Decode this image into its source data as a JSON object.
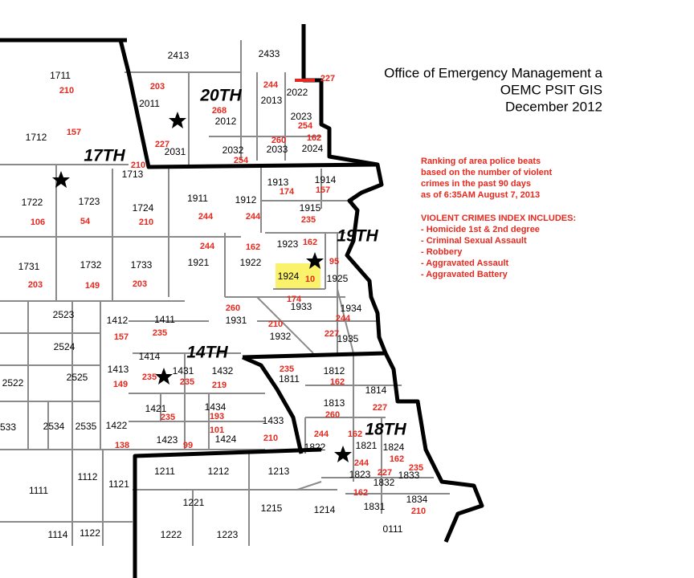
{
  "header": {
    "lines": [
      "Office of Emergency Management a",
      "OEMC PSIT GIS",
      "December  2012"
    ]
  },
  "legend": {
    "description": [
      "Ranking of area police beats",
      "based on the number of violent",
      "crimes in the past 90 days",
      "as of 6:35AM August 7, 2013"
    ],
    "index_title": "VIOLENT CRIMES INDEX INCLUDES:",
    "items": [
      "- Homicide 1st & 2nd degree",
      "- Criminal Sexual Assault",
      "- Robbery",
      "- Aggravated Assault",
      "- Aggravated Battery"
    ]
  },
  "districts": [
    "20TH",
    "17TH",
    "19TH",
    "14TH",
    "18TH"
  ],
  "beats": [
    {
      "beat": "2413"
    },
    {
      "beat": "2433"
    },
    {
      "beat": "1711",
      "rank": 210
    },
    {
      "beat": "2011",
      "rank": 203
    },
    {
      "beat": "2012",
      "rank": 268
    },
    {
      "beat": "2013",
      "rank": 244
    },
    {
      "beat": "2022",
      "rank": 227
    },
    {
      "beat": "2023",
      "rank": 254
    },
    {
      "beat": "1712",
      "rank": 157
    },
    {
      "beat": "2031",
      "rank": 227
    },
    {
      "beat": "2032",
      "rank": 254
    },
    {
      "beat": "2033",
      "rank": 260
    },
    {
      "beat": "2024",
      "rank": 162
    },
    {
      "beat": "1713",
      "rank": 210
    },
    {
      "beat": "1913",
      "rank": 174
    },
    {
      "beat": "1914",
      "rank": 157
    },
    {
      "beat": "1722",
      "rank": 106
    },
    {
      "beat": "1723",
      "rank": 54
    },
    {
      "beat": "1724",
      "rank": 210
    },
    {
      "beat": "1911",
      "rank": 244
    },
    {
      "beat": "1912",
      "rank": 244
    },
    {
      "beat": "1915",
      "rank": 235
    },
    {
      "beat": "1921",
      "rank": 244
    },
    {
      "beat": "1922",
      "rank": 162
    },
    {
      "beat": "1923",
      "rank": 162
    },
    {
      "beat": "1925",
      "rank": 95
    },
    {
      "beat": "1924",
      "rank": 10
    },
    {
      "beat": "1731",
      "rank": 203
    },
    {
      "beat": "1732",
      "rank": 149
    },
    {
      "beat": "1733",
      "rank": 203
    },
    {
      "beat": "1933",
      "rank": 174
    },
    {
      "beat": "1934",
      "rank": 244
    },
    {
      "beat": "1931",
      "rank": 260
    },
    {
      "beat": "1932",
      "rank": 210
    },
    {
      "beat": "1935",
      "rank": 227
    },
    {
      "beat": "2523"
    },
    {
      "beat": "1412",
      "rank": 157
    },
    {
      "beat": "1411",
      "rank": 235
    },
    {
      "beat": "2524"
    },
    {
      "beat": "1414",
      "rank": 235
    },
    {
      "beat": "1413",
      "rank": 149
    },
    {
      "beat": "1431",
      "rank": 235
    },
    {
      "beat": "1432",
      "rank": 219
    },
    {
      "beat": "1811",
      "rank": 235
    },
    {
      "beat": "1812",
      "rank": 162
    },
    {
      "beat": "2522"
    },
    {
      "beat": "2525"
    },
    {
      "beat": "1814",
      "rank": 227
    },
    {
      "beat": "1813",
      "rank": 260
    },
    {
      "beat": "1421",
      "rank": 235
    },
    {
      "beat": "1434",
      "rank": 193
    },
    {
      "beat": "1433",
      "rank": 210
    },
    {
      "beat": "1422",
      "rank": 138
    },
    {
      "beat": "2534"
    },
    {
      "beat": "2535"
    },
    {
      "beat": "1424",
      "rank": 101
    },
    {
      "beat": "1423",
      "rank": 99
    },
    {
      "beat": "1822",
      "rank": 244
    },
    {
      "beat": "1821",
      "rank": 162
    },
    {
      "beat": "1824",
      "rank": 162
    },
    {
      "beat": "1823",
      "rank": 244
    },
    {
      "beat": "1832",
      "rank": 227
    },
    {
      "beat": "1833",
      "rank": 235
    },
    {
      "beat": "1211"
    },
    {
      "beat": "1212"
    },
    {
      "beat": "1213"
    },
    {
      "beat": "1111"
    },
    {
      "beat": "1112"
    },
    {
      "beat": "1121"
    },
    {
      "beat": "1221"
    },
    {
      "beat": "1215"
    },
    {
      "beat": "1214"
    },
    {
      "beat": "1831",
      "rank": 162
    },
    {
      "beat": "1834",
      "rank": 210
    },
    {
      "beat": "1114"
    },
    {
      "beat": "1122"
    },
    {
      "beat": "1222"
    },
    {
      "beat": "1223"
    },
    {
      "beat": "0111"
    },
    {
      "beat": "533"
    }
  ]
}
